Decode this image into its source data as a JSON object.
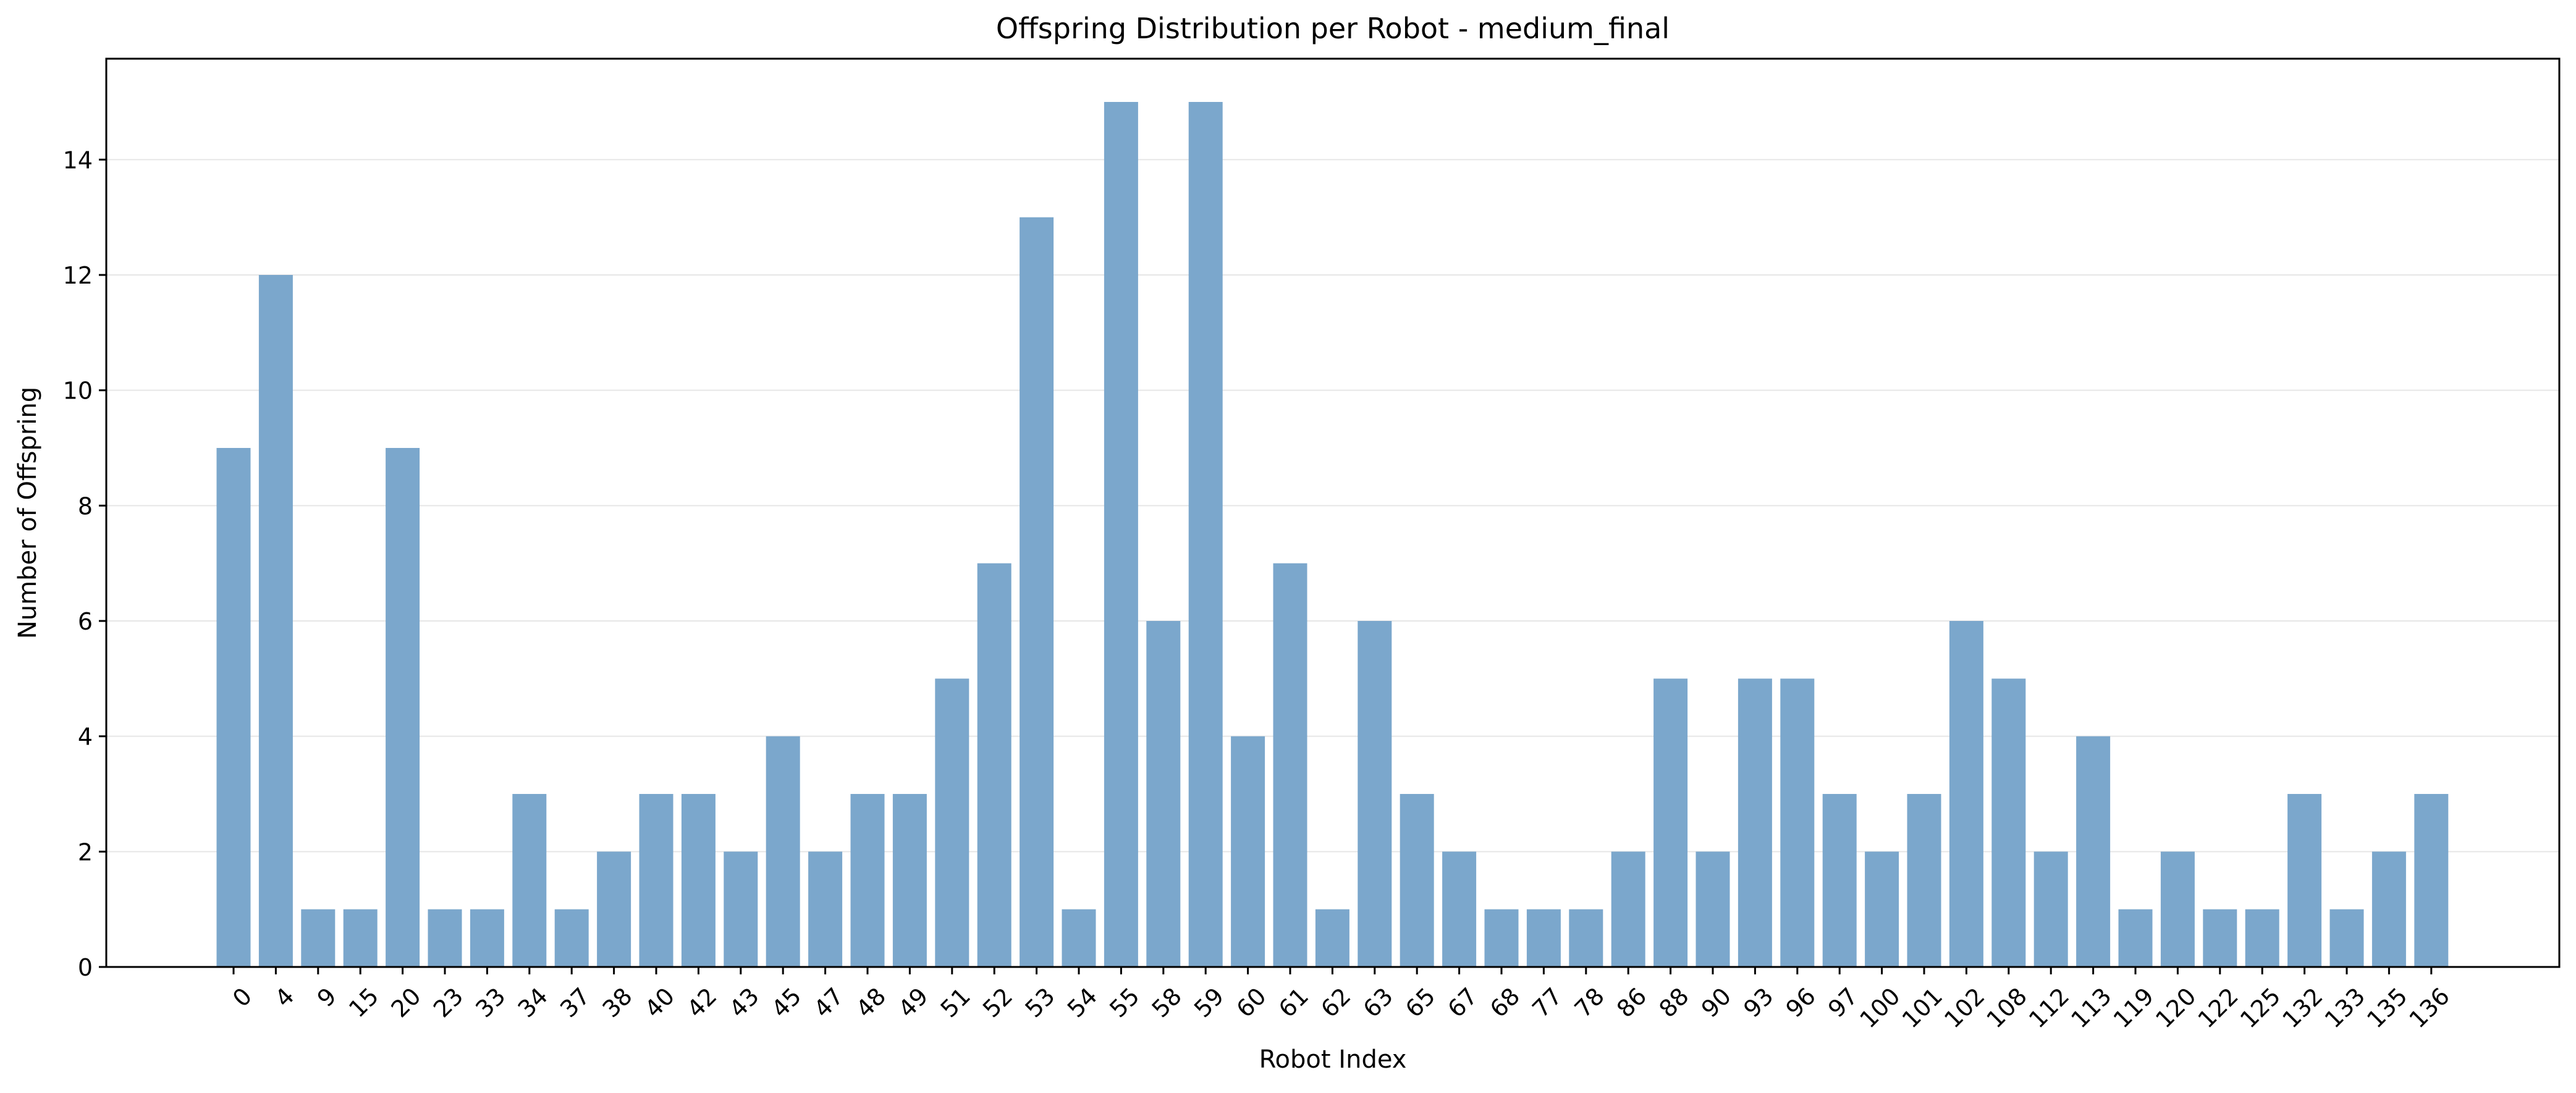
{
  "chart_data": {
    "type": "bar",
    "title": "Offspring Distribution per Robot - medium_final",
    "xlabel": "Robot Index",
    "ylabel": "Number of Offspring",
    "categories": [
      "0",
      "4",
      "9",
      "15",
      "20",
      "23",
      "33",
      "34",
      "37",
      "38",
      "40",
      "42",
      "43",
      "45",
      "47",
      "48",
      "49",
      "51",
      "52",
      "53",
      "54",
      "55",
      "58",
      "59",
      "60",
      "61",
      "62",
      "63",
      "65",
      "67",
      "68",
      "77",
      "78",
      "86",
      "88",
      "90",
      "93",
      "96",
      "97",
      "100",
      "101",
      "102",
      "108",
      "112",
      "113",
      "119",
      "120",
      "122",
      "125",
      "132",
      "133",
      "135",
      "136"
    ],
    "values": [
      9,
      12,
      1,
      1,
      9,
      1,
      1,
      3,
      1,
      2,
      3,
      3,
      2,
      4,
      2,
      3,
      3,
      5,
      7,
      13,
      1,
      15,
      6,
      15,
      4,
      7,
      1,
      6,
      3,
      2,
      1,
      1,
      1,
      2,
      5,
      2,
      5,
      5,
      3,
      2,
      3,
      6,
      5,
      2,
      4,
      1,
      2,
      1,
      1,
      3,
      1,
      2,
      3
    ],
    "ylim": [
      0,
      15.75
    ],
    "yticks": [
      0,
      2,
      4,
      6,
      8,
      10,
      12,
      14
    ],
    "grid": "horizontal",
    "legend": "none",
    "bar_color": "#7ba7cc",
    "grid_color": "#e6e6e6",
    "axis_color": "#000000"
  }
}
